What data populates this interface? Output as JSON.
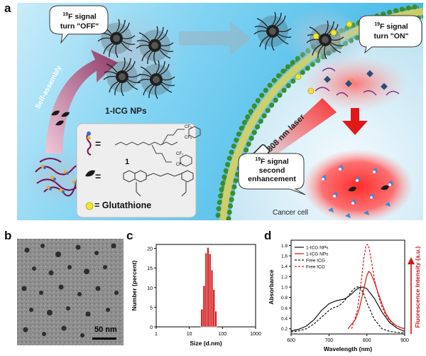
{
  "panel_a": {
    "label": "a",
    "bubble_off": "turn \"OFF\"",
    "bubble_on": "turn \"ON\"",
    "bubble_enh_1": "second",
    "bubble_enh_2": "enhancement",
    "signal_word": "F signal",
    "sup19": "19",
    "self_assembly": "Self-assembly",
    "nps_label": "1-ICG NPs",
    "laser_label": "808 nm laser",
    "cancer_cell": "Cancer cell",
    "eq": "=",
    "compound_num": "1",
    "gsh_label": "= Glutathione",
    "cf3": "CF₃"
  },
  "panel_b": {
    "label": "b",
    "scale_bar": "50 nm"
  },
  "panel_c": {
    "label": "c"
  },
  "panel_d": {
    "label": "d"
  },
  "chart_data": [
    {
      "type": "bar",
      "xlabel": "Size (d.nm)",
      "ylabel": "Number (percent)",
      "xscale": "log",
      "xlim": [
        1,
        1000
      ],
      "ylim": [
        0,
        21
      ],
      "x_ticks": [
        "1",
        "10",
        "100",
        "1000"
      ],
      "y_ticks": [
        "0",
        "5",
        "10",
        "15",
        "20"
      ],
      "bar_color": "#d11414",
      "x": [
        24,
        28,
        32,
        36.5,
        42,
        48,
        55,
        63
      ],
      "values": [
        4.5,
        10.5,
        18.8,
        20.2,
        18.6,
        14.5,
        9.5,
        4.0
      ]
    },
    {
      "type": "line",
      "xlabel": "Wavelength (nm)",
      "ylabel": "Absorbance",
      "y2label": "Fluorescence Intensity (a.u.)",
      "xlim": [
        600,
        900
      ],
      "ylim": [
        0.1,
        1.9
      ],
      "x_ticks": [
        "600",
        "700",
        "800",
        "900"
      ],
      "y_ticks": [
        "0.2",
        "0.4",
        "0.6",
        "0.8",
        "1.0",
        "1.2",
        "1.4",
        "1.6",
        "1.8"
      ],
      "legend_position": "top-left",
      "series": [
        {
          "name": "1-ICG NPs",
          "color": "#111111",
          "dash": "solid",
          "x": [
            600,
            620,
            640,
            660,
            680,
            700,
            720,
            740,
            750,
            760,
            770,
            780,
            790,
            800,
            820,
            840,
            860,
            880,
            900
          ],
          "y": [
            0.16,
            0.19,
            0.25,
            0.37,
            0.55,
            0.68,
            0.74,
            0.77,
            0.81,
            0.87,
            0.94,
            0.99,
            1.0,
            0.97,
            0.78,
            0.52,
            0.32,
            0.21,
            0.15
          ]
        },
        {
          "name": "1-ICG NPs",
          "color": "#d11414",
          "dash": "solid",
          "x": [
            750,
            770,
            780,
            790,
            800,
            805,
            810,
            820,
            830,
            840,
            850,
            860,
            870,
            880,
            890,
            900
          ],
          "y": [
            0.2,
            0.38,
            0.58,
            0.9,
            1.22,
            1.3,
            1.27,
            1.1,
            0.88,
            0.68,
            0.5,
            0.38,
            0.3,
            0.25,
            0.22,
            0.2
          ]
        },
        {
          "name": "Free ICG",
          "color": "#111111",
          "dash": "dashed",
          "x": [
            600,
            620,
            640,
            660,
            680,
            700,
            710,
            720,
            730,
            740,
            750,
            760,
            770,
            780,
            790,
            800,
            820,
            840,
            860,
            880,
            900
          ],
          "y": [
            0.14,
            0.16,
            0.2,
            0.29,
            0.42,
            0.55,
            0.6,
            0.62,
            0.66,
            0.73,
            0.82,
            0.92,
            0.99,
            1.01,
            0.9,
            0.7,
            0.38,
            0.2,
            0.15,
            0.13,
            0.12
          ]
        },
        {
          "name": "Free ICG",
          "color": "#d11414",
          "dash": "dashed",
          "x": [
            760,
            775,
            785,
            792,
            798,
            802,
            806,
            812,
            820,
            830,
            840,
            850,
            860,
            870,
            880,
            890,
            900
          ],
          "y": [
            0.2,
            0.55,
            1.1,
            1.55,
            1.8,
            1.82,
            1.75,
            1.5,
            1.15,
            0.85,
            0.62,
            0.46,
            0.36,
            0.29,
            0.25,
            0.22,
            0.2
          ]
        }
      ]
    }
  ],
  "colors": {
    "accent_red": "#d11414",
    "membrane_green": "#3c8c2c",
    "bg_blue": "#55c3ec"
  }
}
